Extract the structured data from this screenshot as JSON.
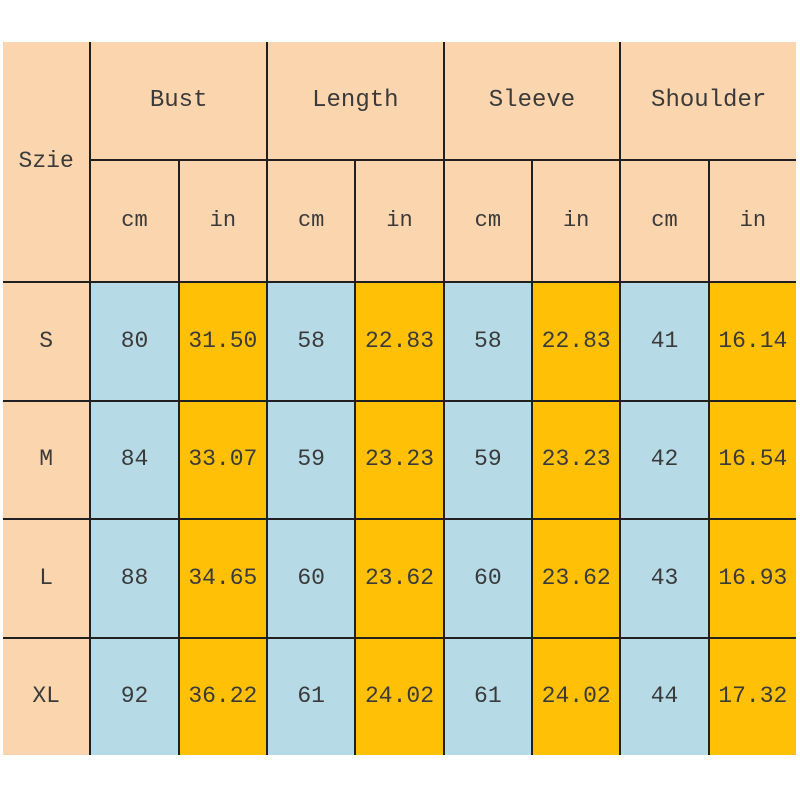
{
  "colors": {
    "page_bg": "#ffffff",
    "header_bg": "#fbd5ae",
    "cm_col_bg": "#b6dbe7",
    "in_col_bg": "#ffc005",
    "grid_line": "#202020",
    "text": "#3a3a3a"
  },
  "chart_data": {
    "type": "table",
    "corner_header": "Szie",
    "column_groups": [
      "Bust",
      "Length",
      "Sleeve",
      "Shoulder"
    ],
    "unit_row": [
      "cm",
      "in",
      "cm",
      "in",
      "cm",
      "in",
      "cm",
      "in"
    ],
    "rows": [
      {
        "size": "S",
        "values": [
          "80",
          "31.50",
          "58",
          "22.83",
          "58",
          "22.83",
          "41",
          "16.14"
        ]
      },
      {
        "size": "M",
        "values": [
          "84",
          "33.07",
          "59",
          "23.23",
          "59",
          "23.23",
          "42",
          "16.54"
        ]
      },
      {
        "size": "L",
        "values": [
          "88",
          "34.65",
          "60",
          "23.62",
          "60",
          "23.62",
          "43",
          "16.93"
        ]
      },
      {
        "size": "XL",
        "values": [
          "92",
          "36.22",
          "61",
          "24.02",
          "61",
          "24.02",
          "44",
          "17.32"
        ]
      }
    ]
  }
}
